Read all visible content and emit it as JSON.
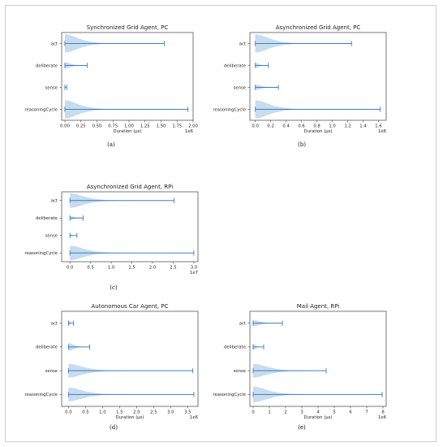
{
  "chart_data": [
    {
      "type": "violin",
      "label": "(a)",
      "title": "Synchronized Grid Agent, PC",
      "xlabel": "Duration (µs)",
      "x_scale_label": "1e6",
      "xlim": [
        -0.05,
        2.0
      ],
      "xticks": [
        "0.00",
        "0.25",
        "0.50",
        "0.75",
        "1.00",
        "1.25",
        "1.50",
        "1.75",
        "2.00"
      ],
      "xtick_values": [
        0,
        0.25,
        0.5,
        0.75,
        1.0,
        1.25,
        1.5,
        1.75,
        2.0
      ],
      "categories": [
        "act",
        "deliberate",
        "sense",
        "reasoningCycle"
      ],
      "series": [
        {
          "category": "act",
          "min": 0,
          "max": 1.55,
          "width": 1.0
        },
        {
          "category": "deliberate",
          "min": 0,
          "max": 0.35,
          "width": 0.35
        },
        {
          "category": "sense",
          "min": 0,
          "max": 0.03,
          "width": 0.25
        },
        {
          "category": "reasoningCycle",
          "min": 0,
          "max": 1.92,
          "width": 1.0
        }
      ]
    },
    {
      "type": "violin",
      "label": "(b)",
      "title": "Asynchronized Grid Agent, PC",
      "xlabel": "Duration (µs)",
      "x_scale_label": "1e6",
      "xlim": [
        -0.07,
        1.7
      ],
      "xticks": [
        "0.0",
        "0.2",
        "0.4",
        "0.6",
        "0.8",
        "1.0",
        "1.2",
        "1.4",
        "1.6"
      ],
      "xtick_values": [
        0,
        0.2,
        0.4,
        0.6,
        0.8,
        1.0,
        1.2,
        1.4,
        1.6
      ],
      "categories": [
        "act",
        "deliberate",
        "sense",
        "reasoningCycle"
      ],
      "series": [
        {
          "category": "act",
          "min": 0,
          "max": 1.25,
          "width": 1.0
        },
        {
          "category": "deliberate",
          "min": 0,
          "max": 0.17,
          "width": 0.3
        },
        {
          "category": "sense",
          "min": 0,
          "max": 0.3,
          "width": 0.3
        },
        {
          "category": "reasoningCycle",
          "min": 0,
          "max": 1.62,
          "width": 1.0
        }
      ]
    },
    {
      "type": "violin",
      "label": "(c)",
      "title": "Asynchronized Grid Agent, RPi",
      "xlabel": "",
      "x_scale_label": "1e7",
      "xlim": [
        -0.2,
        3.1
      ],
      "xticks": [
        "0.0",
        "0.5",
        "1.0",
        "1.5",
        "2.0",
        "2.5",
        "3.0"
      ],
      "xtick_values": [
        0,
        0.5,
        1.0,
        1.5,
        2.0,
        2.5,
        3.0
      ],
      "categories": [
        "act",
        "deliberate",
        "sense",
        "reasoningCycle"
      ],
      "series": [
        {
          "category": "act",
          "min": 0,
          "max": 2.52,
          "width": 1.0
        },
        {
          "category": "deliberate",
          "min": 0,
          "max": 0.32,
          "width": 0.3
        },
        {
          "category": "sense",
          "min": 0,
          "max": 0.17,
          "width": 0.2
        },
        {
          "category": "reasoningCycle",
          "min": 0,
          "max": 3.0,
          "width": 1.0
        }
      ]
    },
    {
      "type": "violin",
      "label": "(d)",
      "title": "Autonomous Car Agent, PC",
      "xlabel": "Duration (µs)",
      "x_scale_label": "1e6",
      "xlim": [
        -0.2,
        3.8
      ],
      "xticks": [
        "0.0",
        "0.5",
        "1.0",
        "1.5",
        "2.0",
        "2.5",
        "3.0",
        "3.5"
      ],
      "xtick_values": [
        0,
        0.5,
        1.0,
        1.5,
        2.0,
        2.5,
        3.0,
        3.5
      ],
      "categories": [
        "act",
        "deliberate",
        "sense",
        "reasoningCycle"
      ],
      "series": [
        {
          "category": "act",
          "min": 0,
          "max": 0.15,
          "width": 0.3
        },
        {
          "category": "deliberate",
          "min": 0,
          "max": 0.62,
          "width": 0.4
        },
        {
          "category": "sense",
          "min": 0,
          "max": 3.65,
          "width": 0.7
        },
        {
          "category": "reasoningCycle",
          "min": 0,
          "max": 3.68,
          "width": 0.7
        }
      ]
    },
    {
      "type": "violin",
      "label": "(e)",
      "title": "Mail Agent, RPi",
      "xlabel": "Duration (µs)",
      "x_scale_label": "1e6",
      "xlim": [
        -0.2,
        8.2
      ],
      "xticks": [
        "0",
        "1",
        "2",
        "3",
        "4",
        "5",
        "6",
        "7",
        "8"
      ],
      "xtick_values": [
        0,
        1,
        2,
        3,
        4,
        5,
        6,
        7,
        8
      ],
      "categories": [
        "act",
        "deliberate",
        "sense",
        "reasoningCycle"
      ],
      "series": [
        {
          "category": "act",
          "min": 0,
          "max": 1.8,
          "width": 0.3
        },
        {
          "category": "deliberate",
          "min": 0,
          "max": 0.65,
          "width": 0.3
        },
        {
          "category": "sense",
          "min": 0,
          "max": 4.5,
          "width": 0.7
        },
        {
          "category": "reasoningCycle",
          "min": 0,
          "max": 7.95,
          "width": 0.8
        }
      ]
    }
  ],
  "colors": {
    "violin_fill": "#b9d3ea",
    "line": "#3f7fbf",
    "axis": "#222222"
  }
}
